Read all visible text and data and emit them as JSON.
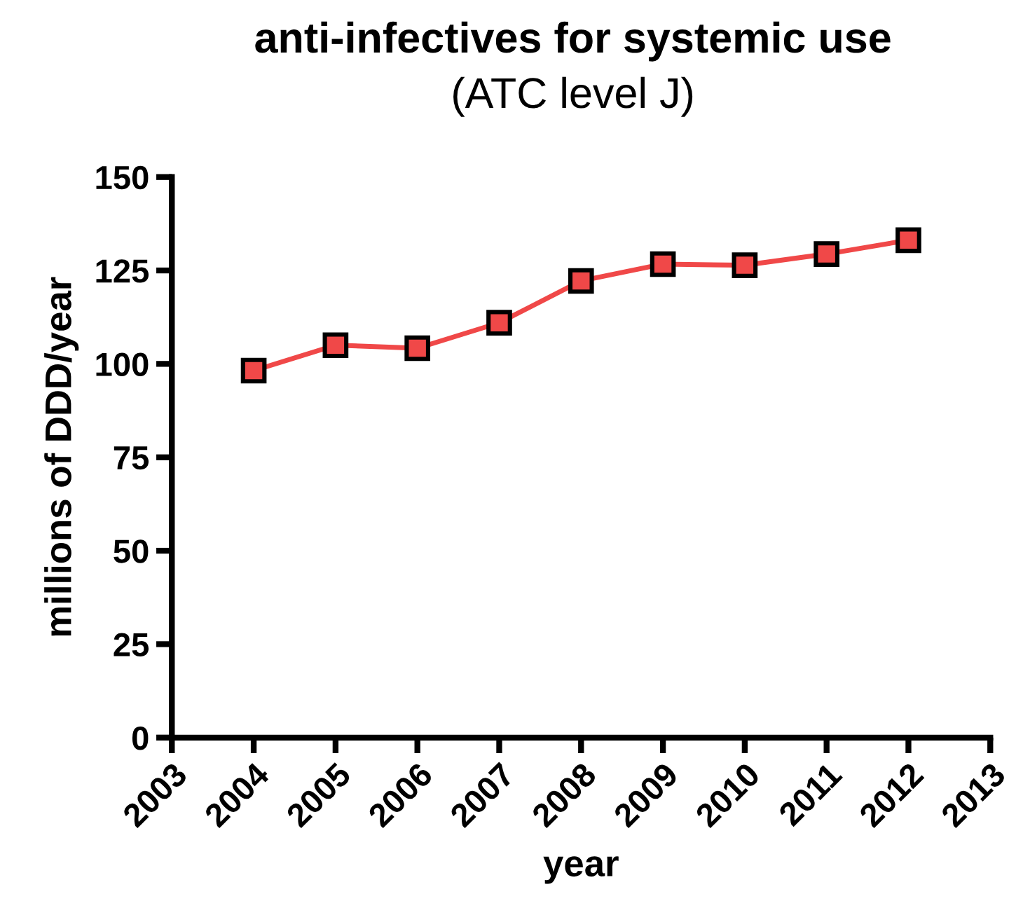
{
  "chart_data": {
    "type": "line",
    "title": "anti-infectives for systemic use",
    "subtitle": "(ATC level J)",
    "xlabel": "year",
    "ylabel": "millions of DDD/year",
    "x": [
      2004,
      2005,
      2006,
      2007,
      2008,
      2009,
      2010,
      2011,
      2012
    ],
    "series": [
      {
        "color": "#f04848",
        "values": [
          98.2,
          105,
          104.2,
          111,
          122.2,
          126.7,
          126.4,
          129.4,
          133.1
        ]
      }
    ],
    "xlim": [
      2003,
      2013
    ],
    "xticks": [
      2003,
      2004,
      2005,
      2006,
      2007,
      2008,
      2009,
      2010,
      2011,
      2012,
      2013
    ],
    "ylim": [
      0,
      150
    ],
    "yticks": [
      0,
      25,
      50,
      75,
      100,
      125,
      150
    ],
    "marker": "square",
    "line_style": "solid",
    "grid": false,
    "legend": false
  }
}
